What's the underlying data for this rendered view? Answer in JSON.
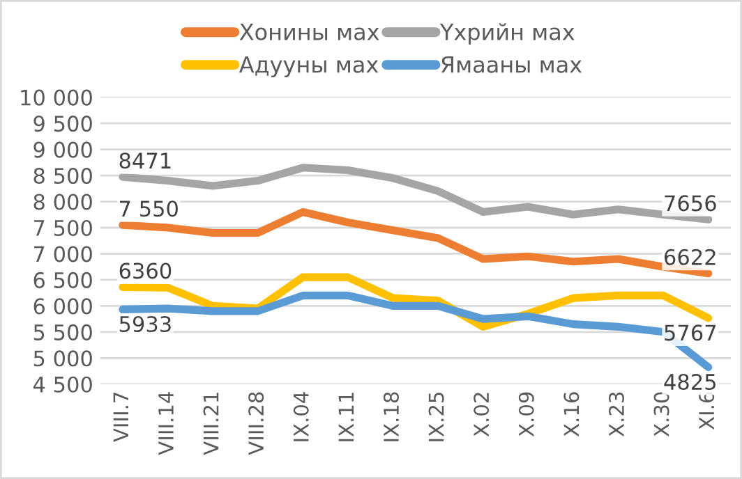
{
  "chart_data": {
    "type": "line",
    "categories": [
      "VIII.7",
      "VIII.14",
      "VIII.21",
      "VIII.28",
      "IX.04",
      "IX.11",
      "IX.18",
      "IX.25",
      "X.02",
      "X.09",
      "X.16",
      "X.23",
      "X.30",
      "XI.6"
    ],
    "series": [
      {
        "name": "Хонины мах",
        "color": "#ed7d31",
        "values": [
          7550,
          7500,
          7400,
          7400,
          7800,
          7600,
          7450,
          7300,
          6900,
          6950,
          6850,
          6900,
          6750,
          6622
        ],
        "value_labels": [
          "7 550",
          null,
          null,
          null,
          null,
          null,
          null,
          null,
          null,
          null,
          null,
          null,
          null,
          "6622"
        ]
      },
      {
        "name": "Үхрийн мах",
        "color": "#a5a5a5",
        "values": [
          8471,
          8400,
          8300,
          8400,
          8650,
          8600,
          8450,
          8200,
          7800,
          7900,
          7750,
          7850,
          7750,
          7656
        ],
        "value_labels": [
          "8471",
          null,
          null,
          null,
          null,
          null,
          null,
          null,
          null,
          null,
          null,
          null,
          null,
          "7656"
        ]
      },
      {
        "name": "Адууны мах",
        "color": "#ffc000",
        "values": [
          6360,
          6350,
          6000,
          5950,
          6550,
          6550,
          6150,
          6100,
          5600,
          5850,
          6150,
          6200,
          6200,
          5767
        ],
        "value_labels": [
          "6360",
          null,
          null,
          null,
          null,
          null,
          null,
          null,
          null,
          null,
          null,
          null,
          null,
          "5767"
        ]
      },
      {
        "name": "Ямааны мах",
        "color": "#5b9bd5",
        "values": [
          5933,
          5950,
          5900,
          5900,
          6200,
          6200,
          6000,
          6000,
          5750,
          5800,
          5650,
          5600,
          5500,
          4825
        ],
        "value_labels": [
          "5933",
          null,
          null,
          null,
          null,
          null,
          null,
          null,
          null,
          null,
          null,
          null,
          null,
          "4825"
        ]
      }
    ],
    "ylim": [
      4500,
      10000
    ],
    "yticks": [
      {
        "value": 4500,
        "label": "4 500"
      },
      {
        "value": 5000,
        "label": "5 000"
      },
      {
        "value": 5500,
        "label": "5 500"
      },
      {
        "value": 6000,
        "label": "6 000"
      },
      {
        "value": 6500,
        "label": "6 500"
      },
      {
        "value": 7000,
        "label": "7 000"
      },
      {
        "value": 7500,
        "label": "7 500"
      },
      {
        "value": 8000,
        "label": "8 000"
      },
      {
        "value": 8500,
        "label": "8 500"
      },
      {
        "value": 9000,
        "label": "9 000"
      },
      {
        "value": 9500,
        "label": "9 500"
      },
      {
        "value": 10000,
        "label": "10 000"
      }
    ],
    "grid": "y",
    "legend": "top",
    "marker": "none",
    "line_style": "solid"
  }
}
